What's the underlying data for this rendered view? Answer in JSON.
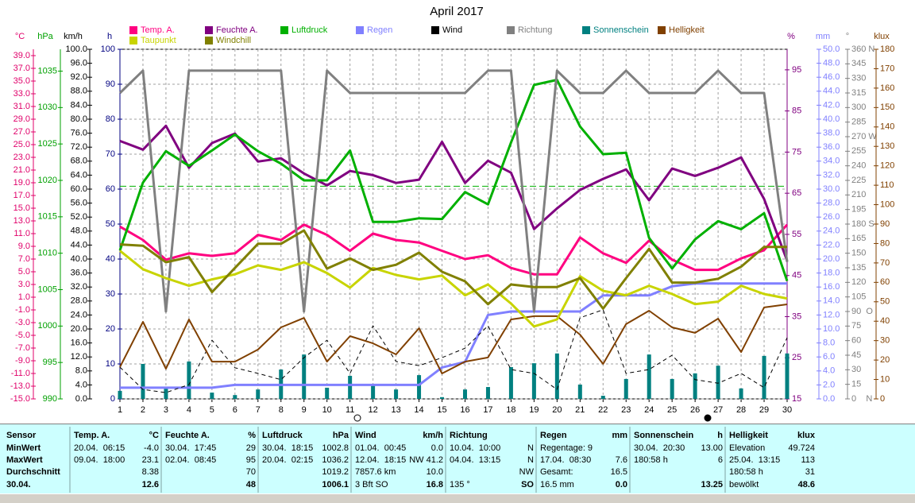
{
  "chart_data": {
    "type": "line",
    "title": "April 2017",
    "x": [
      1,
      2,
      3,
      4,
      5,
      6,
      7,
      8,
      9,
      10,
      11,
      12,
      13,
      14,
      15,
      16,
      17,
      18,
      19,
      20,
      21,
      22,
      23,
      24,
      25,
      26,
      27,
      28,
      29,
      30
    ],
    "xlim": [
      1,
      30
    ],
    "axes": [
      {
        "label": "°C",
        "color": "#e0006a",
        "lim": [
          -15,
          40
        ],
        "ticks": [
          {
            "value": -15,
            "label": "-15.0"
          },
          {
            "value": -13,
            "label": "-13.0"
          },
          {
            "value": -11,
            "label": "-11.0"
          },
          {
            "value": -9,
            "label": "-9.0"
          },
          {
            "value": -7,
            "label": "-7.0"
          },
          {
            "value": -5,
            "label": "-5.0"
          },
          {
            "value": -3,
            "label": "-3.0"
          },
          {
            "value": -1,
            "label": "-1.0"
          },
          {
            "value": 1,
            "label": "1.0"
          },
          {
            "value": 3,
            "label": "3.0"
          },
          {
            "value": 5,
            "label": "5.0"
          },
          {
            "value": 7,
            "label": "7.0"
          },
          {
            "value": 9,
            "label": "9.0"
          },
          {
            "value": 11,
            "label": "11.0"
          },
          {
            "value": 13,
            "label": "13.0"
          },
          {
            "value": 15,
            "label": "15.0"
          },
          {
            "value": 17,
            "label": "17.0"
          },
          {
            "value": 19,
            "label": "19.0"
          },
          {
            "value": 21,
            "label": "21.0"
          },
          {
            "value": 23,
            "label": "23.0"
          },
          {
            "value": 25,
            "label": "25.0"
          },
          {
            "value": 27,
            "label": "27.0"
          },
          {
            "value": 29,
            "label": "29.0"
          },
          {
            "value": 31,
            "label": "31.0"
          },
          {
            "value": 33,
            "label": "33.0"
          },
          {
            "value": 35,
            "label": "35.0"
          },
          {
            "value": 37,
            "label": "37.0"
          },
          {
            "value": 39,
            "label": "39.0"
          }
        ]
      },
      {
        "label": "hPa",
        "color": "#00a000",
        "lim": [
          990,
          1038
        ],
        "ticks": [
          990,
          995,
          1000,
          1005,
          1010,
          1015,
          1020,
          1025,
          1030,
          1035
        ]
      },
      {
        "label": "km/h",
        "color": "#000000",
        "lim": [
          0,
          100
        ],
        "ticks": [
          {
            "value": 0,
            "label": "0.0"
          },
          {
            "value": 4,
            "label": "4.0"
          },
          {
            "value": 8,
            "label": "8.0"
          },
          {
            "value": 12,
            "label": "12.0"
          },
          {
            "value": 16,
            "label": "16.0"
          },
          {
            "value": 20,
            "label": "20.0"
          },
          {
            "value": 24,
            "label": "24.0"
          },
          {
            "value": 28,
            "label": "28.0"
          },
          {
            "value": 32,
            "label": "32.0"
          },
          {
            "value": 36,
            "label": "36.0"
          },
          {
            "value": 40,
            "label": "40.0"
          },
          {
            "value": 44,
            "label": "44.0"
          },
          {
            "value": 48,
            "label": "48.0"
          },
          {
            "value": 52,
            "label": "52.0"
          },
          {
            "value": 56,
            "label": "56.0"
          },
          {
            "value": 60,
            "label": "60.0"
          },
          {
            "value": 64,
            "label": "64.0"
          },
          {
            "value": 68,
            "label": "68.0"
          },
          {
            "value": 72,
            "label": "72.0"
          },
          {
            "value": 76,
            "label": "76.0"
          },
          {
            "value": 80,
            "label": "80.0"
          },
          {
            "value": 84,
            "label": "84.0"
          },
          {
            "value": 88,
            "label": "88.0"
          },
          {
            "value": 92,
            "label": "92.0"
          },
          {
            "value": 96,
            "label": "96.0"
          },
          {
            "value": 100,
            "label": "100.0"
          }
        ]
      },
      {
        "label": "h",
        "color": "#000080",
        "lim": [
          0,
          100
        ],
        "ticks": [
          0,
          10,
          20,
          30,
          40,
          50,
          60,
          70,
          80,
          90,
          100
        ],
        "grid": true
      },
      {
        "label": "%",
        "color": "#800080",
        "lim": [
          15,
          100
        ],
        "ticks": [
          15,
          25,
          35,
          45,
          55,
          65,
          75,
          85,
          95
        ]
      },
      {
        "label": "mm",
        "color": "#8080ff",
        "lim": [
          0,
          50
        ],
        "ticks": [
          {
            "value": 0,
            "label": "0.0"
          },
          {
            "value": 2,
            "label": "2.0"
          },
          {
            "value": 4,
            "label": "4.0"
          },
          {
            "value": 6,
            "label": "6.0"
          },
          {
            "value": 8,
            "label": "8.0"
          },
          {
            "value": 10,
            "label": "10.0"
          },
          {
            "value": 12,
            "label": "12.0"
          },
          {
            "value": 14,
            "label": "14.0"
          },
          {
            "value": 16,
            "label": "16.0"
          },
          {
            "value": 18,
            "label": "18.0"
          },
          {
            "value": 20,
            "label": "20.0"
          },
          {
            "value": 22,
            "label": "22.0"
          },
          {
            "value": 24,
            "label": "24.0"
          },
          {
            "value": 26,
            "label": "26.0"
          },
          {
            "value": 28,
            "label": "28.0"
          },
          {
            "value": 30,
            "label": "30.0"
          },
          {
            "value": 32,
            "label": "32.0"
          },
          {
            "value": 34,
            "label": "34.0"
          },
          {
            "value": 36,
            "label": "36.0"
          },
          {
            "value": 38,
            "label": "38.0"
          },
          {
            "value": 40,
            "label": "40.0"
          },
          {
            "value": 42,
            "label": "42.0"
          },
          {
            "value": 44,
            "label": "44.0"
          },
          {
            "value": 46,
            "label": "46.0"
          },
          {
            "value": 48,
            "label": "48.0"
          },
          {
            "value": 50,
            "label": "50.0"
          }
        ]
      },
      {
        "label": "°",
        "color": "#808080",
        "lim": [
          0,
          360
        ],
        "ticks": [
          {
            "value": 0,
            "label": "0    N"
          },
          15,
          30,
          45,
          60,
          75,
          {
            "value": 90,
            "label": "90  O"
          },
          105,
          120,
          135,
          150,
          165,
          {
            "value": 180,
            "label": "180 S"
          },
          195,
          210,
          225,
          240,
          255,
          {
            "value": 270,
            "label": "270 W"
          },
          285,
          300,
          315,
          330,
          345,
          {
            "value": 360,
            "label": "360 N"
          }
        ]
      },
      {
        "label": "klux",
        "color": "#804000",
        "lim": [
          0,
          180
        ],
        "ticks": [
          0,
          10,
          20,
          30,
          40,
          50,
          60,
          70,
          80,
          90,
          100,
          110,
          120,
          130,
          140,
          150,
          160,
          170,
          180
        ]
      }
    ],
    "series": [
      {
        "name": "Temp. A.",
        "color": "#ff0080",
        "axis": "°C",
        "width": 3,
        "values": [
          12.1,
          10.0,
          6.9,
          7.9,
          7.5,
          7.9,
          10.8,
          10.0,
          12.4,
          10.8,
          8.3,
          11.0,
          10.0,
          9.6,
          8.3,
          7.0,
          7.6,
          5.6,
          4.6,
          4.6,
          10.4,
          7.9,
          6.4,
          9.9,
          6.9,
          5.3,
          5.3,
          7.1,
          8.4,
          12.4
        ]
      },
      {
        "name": "Feuchte A.",
        "color": "#800080",
        "axis": "%",
        "width": 3,
        "values": [
          77.7,
          75.6,
          81.4,
          71.2,
          77.2,
          79.5,
          72.7,
          73.5,
          69.8,
          66.9,
          70.4,
          69.4,
          67.5,
          68.3,
          77.5,
          67.5,
          72.9,
          70.0,
          56.3,
          61.3,
          65.8,
          68.5,
          70.8,
          63.3,
          71.0,
          69.2,
          71.2,
          73.7,
          63.6,
          48.6
        ]
      },
      {
        "name": "Luftdruck",
        "color": "#00b000",
        "axis": "hPa",
        "width": 3,
        "values": [
          1010.4,
          1019.7,
          1024.0,
          1022.0,
          1024.1,
          1026.3,
          1024.0,
          1022.3,
          1020.0,
          1020.0,
          1024.1,
          1014.3,
          1014.3,
          1014.8,
          1014.7,
          1018.4,
          1016.7,
          1025.2,
          1033.1,
          1033.8,
          1027.4,
          1023.6,
          1023.8,
          1012.1,
          1007.9,
          1011.9,
          1014.4,
          1013.3,
          1015.5,
          1006.2
        ]
      },
      {
        "name": "Regen",
        "color": "#8080ff",
        "axis": "mm",
        "width": 3,
        "values": [
          1.6,
          1.6,
          1.6,
          1.6,
          1.6,
          2.0,
          2.0,
          2.0,
          2.0,
          2.0,
          2.0,
          2.0,
          2.0,
          2.0,
          4.5,
          5.3,
          12.0,
          12.5,
          12.5,
          12.5,
          12.5,
          14.8,
          14.8,
          14.8,
          16.1,
          16.5,
          16.5,
          16.5,
          16.5,
          16.5
        ]
      },
      {
        "name": "Wind",
        "color": "#000000",
        "axis": "km/h",
        "width": 1,
        "dashed": true,
        "values": [
          9.1,
          2.7,
          1.8,
          4.1,
          16.8,
          8.9,
          7.3,
          5.5,
          11.8,
          16.8,
          7.3,
          20.9,
          10.7,
          9.5,
          11.8,
          14.5,
          20.9,
          8.4,
          7.3,
          2.7,
          23.2,
          25.5,
          7.3,
          8.4,
          12.5,
          5.5,
          4.5,
          7.3,
          3.2,
          17.5
        ]
      },
      {
        "name": "Richtung",
        "color": "#808080",
        "axis": "°",
        "width": 3,
        "values": [
          315,
          338,
          90,
          338,
          338,
          338,
          338,
          338,
          90,
          338,
          315,
          315,
          315,
          315,
          315,
          315,
          338,
          338,
          90,
          338,
          315,
          315,
          338,
          315,
          315,
          315,
          338,
          315,
          315,
          141
        ]
      },
      {
        "name": "Sonnenschein",
        "color": "#008080",
        "axis": "h",
        "type": "bar",
        "values": [
          2.3,
          10.0,
          3.4,
          10.7,
          1.8,
          1.1,
          2.7,
          8.4,
          12.7,
          3.2,
          6.6,
          4.3,
          2.7,
          6.8,
          0.5,
          2.7,
          3.4,
          9.1,
          10.2,
          13.0,
          4.1,
          0.9,
          5.7,
          12.7,
          5.7,
          7.3,
          9.5,
          3.0,
          12.3,
          13.0
        ]
      },
      {
        "name": "Helligkeit",
        "color": "#804000",
        "axis": "klux",
        "width": 2,
        "values": [
          16.4,
          39.7,
          15.5,
          40.9,
          19.2,
          19.2,
          25.4,
          36.8,
          41.7,
          19.2,
          32.3,
          28.6,
          22.9,
          36.4,
          13.1,
          19.2,
          21.3,
          40.9,
          42.6,
          42.6,
          33.1,
          18.0,
          38.5,
          45.4,
          36.8,
          34.0,
          41.3,
          24.1,
          47.1,
          48.7
        ]
      },
      {
        "name": "Taupunkt",
        "color": "#c8d400",
        "axis": "°C",
        "width": 3,
        "values": [
          8.3,
          5.4,
          4.0,
          2.8,
          3.8,
          4.6,
          6.0,
          5.3,
          6.5,
          4.8,
          2.5,
          5.6,
          4.5,
          3.8,
          4.4,
          1.3,
          3.0,
          0.0,
          -3.6,
          -2.5,
          4.3,
          2.0,
          1.3,
          2.8,
          1.5,
          -0.1,
          0.3,
          2.8,
          1.5,
          0.8
        ]
      },
      {
        "name": "Windchill",
        "color": "#808000",
        "axis": "°C",
        "width": 3,
        "values": [
          9.3,
          9.1,
          6.5,
          7.3,
          1.8,
          5.6,
          9.4,
          9.4,
          11.5,
          5.5,
          7.1,
          5.3,
          6.1,
          8.0,
          5.0,
          3.5,
          -0.1,
          3.0,
          2.6,
          2.6,
          4.0,
          -0.8,
          4.0,
          8.6,
          3.3,
          3.3,
          3.9,
          5.8,
          8.9,
          8.9
        ]
      }
    ],
    "mean_line": {
      "axis": "hPa",
      "value": 1019.2,
      "color": "#00b000"
    }
  },
  "table": {
    "row_labels": [
      "Sensor",
      "MinWert",
      "MaxWert",
      "Durchschnitt",
      "30.04."
    ],
    "columns": [
      {
        "header": "Temp. A.",
        "unit": "°C",
        "rows": [
          [
            "20.04.  06:15",
            "-4.0"
          ],
          [
            "09.04.  18:00",
            "23.1"
          ],
          [
            null,
            "8.38"
          ],
          [
            null,
            "12.6"
          ]
        ]
      },
      {
        "header": "Feuchte A.",
        "unit": "%",
        "rows": [
          [
            "30.04.  17:45",
            "29"
          ],
          [
            "02.04.  08:45",
            "95"
          ],
          [
            null,
            "70"
          ],
          [
            null,
            "48"
          ]
        ]
      },
      {
        "header": "Luftdruck",
        "unit": "hPa",
        "rows": [
          [
            "30.04.  18:15",
            "1002.8"
          ],
          [
            "20.04.  02:15",
            "1036.2"
          ],
          [
            null,
            "1019.2"
          ],
          [
            null,
            "1006.1"
          ]
        ]
      },
      {
        "header": "Wind",
        "unit": "km/h",
        "rows": [
          [
            "01.04.  00:45",
            "0.0"
          ],
          [
            "12.04.  18:15",
            "NW 41.2"
          ],
          [
            "7857.6 km",
            "10.0"
          ],
          [
            "3 Bft SO",
            "16.8"
          ]
        ]
      },
      {
        "header": "Richtung",
        "unit": null,
        "rows": [
          [
            "10.04.  10:00",
            "N"
          ],
          [
            "04.04.  13:15",
            "N"
          ],
          [
            null,
            "NW"
          ],
          [
            "135 °",
            "SO"
          ]
        ]
      },
      {
        "header": "Regen",
        "unit": "mm",
        "rows": [
          [
            "Regentage: 9",
            null
          ],
          [
            "17.04.  08:30",
            "7.6"
          ],
          [
            "Gesamt:",
            "16.5"
          ],
          [
            "16.5 mm",
            "0.0"
          ]
        ]
      },
      {
        "header": "Sonnenschein",
        "unit": "h",
        "rows": [
          [
            "30.04.  20:30",
            "13.00"
          ],
          [
            "180:58 h",
            "6"
          ],
          [
            null,
            null
          ],
          [
            null,
            "13.25"
          ]
        ]
      },
      {
        "header": "Helligkeit",
        "unit": "klux",
        "rows": [
          [
            "Elevation",
            "49.724"
          ],
          [
            "25.04.  13:15",
            "113"
          ],
          [
            "180:58 h",
            "31"
          ],
          [
            "bewölkt",
            "48.6"
          ]
        ]
      }
    ]
  }
}
